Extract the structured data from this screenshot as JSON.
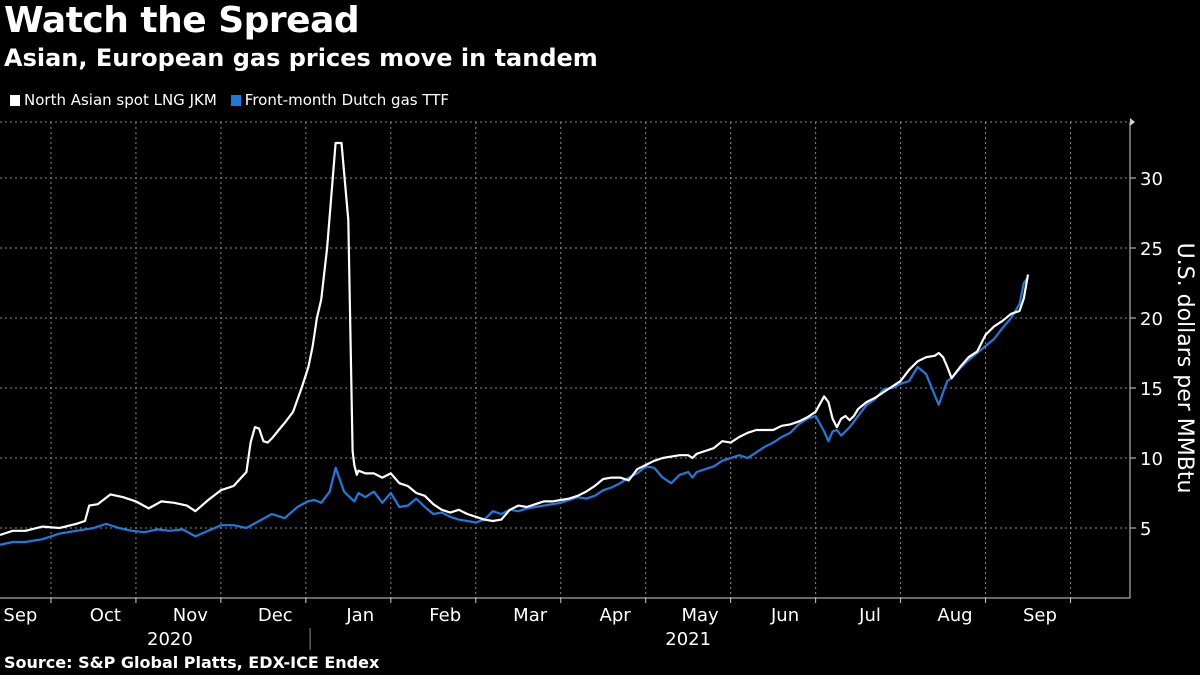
{
  "header": {
    "title": "Watch the Spread",
    "subtitle": "Asian, European gas prices move in tandem"
  },
  "legend": {
    "items": [
      {
        "label": "North Asian spot LNG JKM",
        "color": "#ffffff"
      },
      {
        "label": "Front-month Dutch gas TTF",
        "color": "#1f7ae0"
      }
    ]
  },
  "footer": {
    "source": "Source: S&P Global Platts, EDX-ICE Endex"
  },
  "chart_data": {
    "type": "line",
    "title": "Watch the Spread",
    "subtitle": "Asian, European gas prices move in tandem",
    "ylabel": "U.S. dollars per MMBtu",
    "xlabel": "",
    "ylim": [
      0,
      34
    ],
    "yticks": [
      5,
      10,
      15,
      20,
      25,
      30
    ],
    "grid": true,
    "legend_position": "top-left",
    "x_unit": "months since Sep 1, 2020",
    "xlim": [
      0,
      13.3
    ],
    "months": [
      {
        "label": "Sep",
        "x": 0.1
      },
      {
        "label": "Oct",
        "x": 1.1
      },
      {
        "label": "Nov",
        "x": 2.1
      },
      {
        "label": "Dec",
        "x": 3.1
      },
      {
        "label": "Jan",
        "x": 4.1
      },
      {
        "label": "Feb",
        "x": 5.1
      },
      {
        "label": "Mar",
        "x": 6.1
      },
      {
        "label": "Apr",
        "x": 7.1
      },
      {
        "label": "May",
        "x": 8.1
      },
      {
        "label": "Jun",
        "x": 9.1
      },
      {
        "label": "Jul",
        "x": 10.1
      },
      {
        "label": "Aug",
        "x": 11.1
      },
      {
        "label": "Sep",
        "x": 12.1
      }
    ],
    "years": [
      {
        "label": "2020",
        "x": 2.0
      },
      {
        "label": "2021",
        "x": 8.1
      }
    ],
    "year_divider_x": 3.65,
    "series": [
      {
        "name": "North Asian spot LNG JKM",
        "color": "#ffffff",
        "x": [
          0.0,
          0.15,
          0.3,
          0.5,
          0.7,
          0.9,
          1.0,
          1.05,
          1.15,
          1.3,
          1.45,
          1.6,
          1.75,
          1.9,
          2.05,
          2.2,
          2.3,
          2.45,
          2.6,
          2.75,
          2.9,
          2.95,
          3.0,
          3.05,
          3.1,
          3.15,
          3.2,
          3.28,
          3.35,
          3.45,
          3.55,
          3.63,
          3.68,
          3.73,
          3.78,
          3.85,
          3.95,
          4.02,
          4.1,
          4.15,
          4.17,
          4.2,
          4.22,
          4.3,
          4.4,
          4.5,
          4.6,
          4.7,
          4.8,
          4.9,
          5.0,
          5.1,
          5.2,
          5.3,
          5.4,
          5.5,
          5.6,
          5.7,
          5.8,
          5.9,
          6.0,
          6.1,
          6.2,
          6.3,
          6.4,
          6.5,
          6.6,
          6.7,
          6.8,
          6.9,
          7.0,
          7.1,
          7.2,
          7.3,
          7.4,
          7.5,
          7.6,
          7.7,
          7.8,
          7.9,
          8.0,
          8.1,
          8.15,
          8.2,
          8.3,
          8.4,
          8.5,
          8.6,
          8.7,
          8.8,
          8.9,
          9.0,
          9.1,
          9.2,
          9.3,
          9.4,
          9.5,
          9.6,
          9.7,
          9.75,
          9.8,
          9.85,
          9.9,
          9.95,
          10.0,
          10.05,
          10.1,
          10.2,
          10.3,
          10.4,
          10.5,
          10.6,
          10.7,
          10.8,
          10.9,
          11.0,
          11.05,
          11.1,
          11.15,
          11.2,
          11.3,
          11.4,
          11.5,
          11.6,
          11.7,
          11.8,
          11.9,
          12.0,
          12.05,
          12.1
        ],
        "values": [
          4.5,
          4.8,
          4.8,
          5.1,
          5.0,
          5.3,
          5.5,
          6.6,
          6.7,
          7.4,
          7.2,
          6.9,
          6.4,
          6.9,
          6.8,
          6.6,
          6.2,
          7.0,
          7.7,
          8.0,
          9.0,
          11.1,
          12.2,
          12.1,
          11.2,
          11.1,
          11.4,
          12.0,
          12.5,
          13.3,
          15.0,
          16.5,
          18.0,
          20.0,
          21.3,
          25.0,
          32.5,
          32.5,
          27.0,
          10.5,
          9.5,
          8.8,
          9.1,
          8.9,
          8.9,
          8.6,
          8.9,
          8.2,
          8.0,
          7.5,
          7.3,
          6.7,
          6.3,
          6.1,
          6.3,
          6.0,
          5.8,
          5.6,
          5.5,
          5.6,
          6.3,
          6.6,
          6.5,
          6.7,
          6.9,
          6.9,
          7.0,
          7.1,
          7.3,
          7.6,
          8.0,
          8.5,
          8.6,
          8.6,
          8.4,
          9.2,
          9.5,
          9.8,
          10.0,
          10.1,
          10.2,
          10.2,
          10.0,
          10.3,
          10.5,
          10.7,
          11.2,
          11.1,
          11.5,
          11.8,
          12.0,
          12.0,
          12.0,
          12.3,
          12.4,
          12.6,
          12.9,
          13.3,
          14.4,
          14.0,
          12.8,
          12.2,
          12.8,
          13.0,
          12.7,
          13.0,
          13.5,
          14.0,
          14.3,
          14.7,
          15.1,
          15.5,
          16.3,
          16.9,
          17.2,
          17.3,
          17.5,
          17.2,
          16.5,
          15.7,
          16.5,
          17.2,
          17.6,
          18.8,
          19.4,
          19.8,
          20.3,
          20.5,
          21.4,
          23.1
        ]
      },
      {
        "name": "Front-month Dutch gas TTF",
        "color": "#1f7ae0",
        "x": [
          0.0,
          0.15,
          0.3,
          0.5,
          0.7,
          0.9,
          1.0,
          1.1,
          1.25,
          1.4,
          1.55,
          1.7,
          1.85,
          2.0,
          2.15,
          2.3,
          2.45,
          2.6,
          2.75,
          2.9,
          3.05,
          3.2,
          3.35,
          3.5,
          3.62,
          3.7,
          3.78,
          3.88,
          3.95,
          4.05,
          4.1,
          4.17,
          4.22,
          4.3,
          4.4,
          4.5,
          4.6,
          4.7,
          4.8,
          4.9,
          5.0,
          5.1,
          5.2,
          5.3,
          5.4,
          5.5,
          5.6,
          5.7,
          5.8,
          5.9,
          6.0,
          6.1,
          6.2,
          6.3,
          6.4,
          6.5,
          6.6,
          6.7,
          6.8,
          6.9,
          7.0,
          7.1,
          7.2,
          7.3,
          7.4,
          7.5,
          7.6,
          7.7,
          7.8,
          7.9,
          8.0,
          8.1,
          8.15,
          8.2,
          8.3,
          8.4,
          8.5,
          8.6,
          8.7,
          8.8,
          8.9,
          9.0,
          9.1,
          9.2,
          9.3,
          9.4,
          9.5,
          9.6,
          9.7,
          9.75,
          9.8,
          9.85,
          9.9,
          9.95,
          10.0,
          10.05,
          10.1,
          10.2,
          10.3,
          10.4,
          10.5,
          10.6,
          10.7,
          10.8,
          10.9,
          11.0,
          11.05,
          11.1,
          11.15,
          11.2,
          11.3,
          11.4,
          11.5,
          11.6,
          11.7,
          11.8,
          11.9,
          12.0,
          12.05,
          12.1
        ],
        "values": [
          3.8,
          4.0,
          4.0,
          4.2,
          4.6,
          4.8,
          4.9,
          5.0,
          5.3,
          5.0,
          4.8,
          4.7,
          4.9,
          4.8,
          4.9,
          4.4,
          4.8,
          5.2,
          5.2,
          5.0,
          5.5,
          6.0,
          5.7,
          6.5,
          6.9,
          7.0,
          6.8,
          7.6,
          9.3,
          7.6,
          7.3,
          6.9,
          7.5,
          7.2,
          7.6,
          6.8,
          7.5,
          6.5,
          6.6,
          7.1,
          6.5,
          6.0,
          6.1,
          5.8,
          5.6,
          5.5,
          5.4,
          5.6,
          6.2,
          6.0,
          6.3,
          6.2,
          6.4,
          6.5,
          6.6,
          6.7,
          6.8,
          7.0,
          7.2,
          7.1,
          7.3,
          7.7,
          7.9,
          8.2,
          8.6,
          8.9,
          9.4,
          9.3,
          8.6,
          8.2,
          8.8,
          9.0,
          8.6,
          9.0,
          9.2,
          9.4,
          9.8,
          10.0,
          10.2,
          10.0,
          10.4,
          10.8,
          11.1,
          11.5,
          11.8,
          12.4,
          12.8,
          13.0,
          11.9,
          11.2,
          11.9,
          12.0,
          11.6,
          11.9,
          12.2,
          12.6,
          13.0,
          13.8,
          14.2,
          14.9,
          15.0,
          15.3,
          15.5,
          16.5,
          16.0,
          14.5,
          13.8,
          14.7,
          15.5,
          15.7,
          16.4,
          17.0,
          17.5,
          18.0,
          18.5,
          19.3,
          20.0,
          21.0,
          22.5,
          22.9
        ]
      }
    ]
  }
}
